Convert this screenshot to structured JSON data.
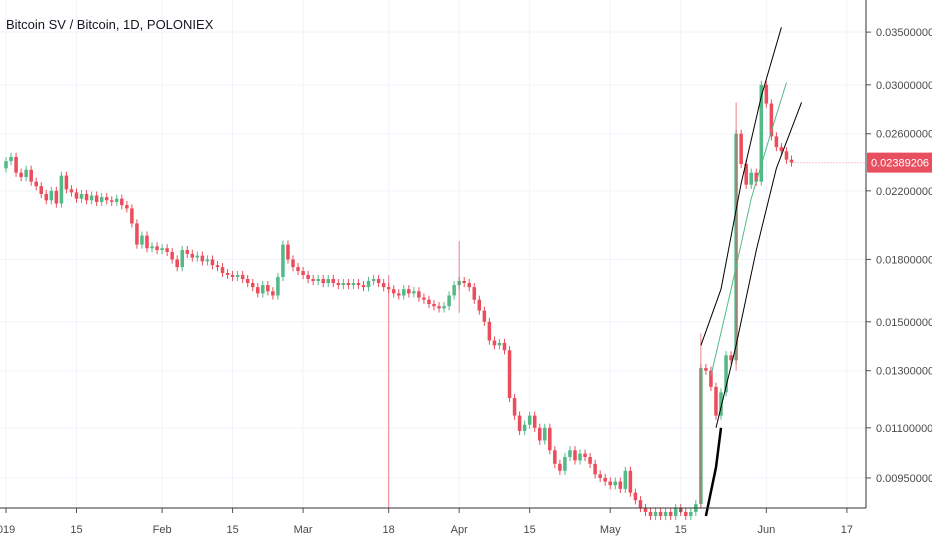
{
  "title": "Bitcoin SV / Bitcoin, 1D, POLONIEX",
  "colors": {
    "up": "#26a69a",
    "up_fill": "#53b987",
    "down": "#ef5350",
    "down_fill": "#eb4d5c",
    "grid": "#f0f3fa",
    "axis_text": "#4a4a4a",
    "channel": "#000000",
    "ma": "#53b987",
    "price_tag_bg": "#e84f5e"
  },
  "chart_data": {
    "type": "candlestick",
    "title": "Bitcoin SV / Bitcoin, 1D, POLONIEX",
    "scale": "log",
    "grid": true,
    "y_ticks": [
      "0.03500000",
      "0.03000000",
      "0.02600000",
      "0.02200000",
      "0.01800000",
      "0.01500000",
      "0.01300000",
      "0.01100000",
      "0.00950000"
    ],
    "y_tick_values": [
      0.035,
      0.03,
      0.026,
      0.022,
      0.018,
      0.015,
      0.013,
      0.011,
      0.0095
    ],
    "ylim": [
      0.0087,
      0.038
    ],
    "x_ticks": [
      "019",
      "15",
      "Feb",
      "15",
      "Mar",
      "18",
      "Apr",
      "15",
      "May",
      "15",
      "Jun",
      "17"
    ],
    "x_tick_days": [
      0,
      14,
      31,
      45,
      59,
      76,
      90,
      104,
      120,
      134,
      151,
      167
    ],
    "day_range": [
      0,
      170
    ],
    "last_price": "0.02389206",
    "candles_seed": [
      [
        0,
        0.0235,
        0.024
      ],
      [
        1,
        0.024,
        0.0243
      ],
      [
        2,
        0.0243,
        0.0232
      ],
      [
        3,
        0.0232,
        0.0229
      ],
      [
        4,
        0.0229,
        0.0234
      ],
      [
        5,
        0.0234,
        0.0226
      ],
      [
        6,
        0.0226,
        0.0223
      ],
      [
        7,
        0.0223,
        0.0218
      ],
      [
        8,
        0.0218,
        0.0214
      ],
      [
        9,
        0.0214,
        0.022
      ],
      [
        10,
        0.022,
        0.0212
      ],
      [
        11,
        0.0212,
        0.023
      ],
      [
        12,
        0.023,
        0.0221
      ],
      [
        13,
        0.0221,
        0.0219
      ],
      [
        14,
        0.0219,
        0.0215
      ],
      [
        15,
        0.0215,
        0.0218
      ],
      [
        16,
        0.0218,
        0.0214
      ],
      [
        17,
        0.0214,
        0.0217
      ],
      [
        18,
        0.0217,
        0.0213
      ],
      [
        19,
        0.0213,
        0.0216
      ],
      [
        20,
        0.0216,
        0.0214
      ],
      [
        21,
        0.0214,
        0.0213
      ],
      [
        22,
        0.0213,
        0.0215
      ],
      [
        23,
        0.0215,
        0.0211
      ],
      [
        24,
        0.0211,
        0.0209
      ],
      [
        25,
        0.0209,
        0.02
      ],
      [
        26,
        0.02,
        0.0188
      ],
      [
        27,
        0.0188,
        0.0193
      ],
      [
        28,
        0.0193,
        0.0186
      ],
      [
        29,
        0.0186,
        0.0187
      ],
      [
        30,
        0.0187,
        0.0185
      ],
      [
        31,
        0.0185,
        0.0186
      ],
      [
        32,
        0.0186,
        0.0184
      ],
      [
        33,
        0.0184,
        0.018
      ],
      [
        34,
        0.018,
        0.0176
      ],
      [
        35,
        0.0176,
        0.0185
      ],
      [
        36,
        0.0185,
        0.0183
      ],
      [
        37,
        0.0183,
        0.0181
      ],
      [
        38,
        0.0181,
        0.0182
      ],
      [
        39,
        0.0182,
        0.0179
      ],
      [
        40,
        0.0179,
        0.018
      ],
      [
        41,
        0.018,
        0.0177
      ],
      [
        42,
        0.0177,
        0.0176
      ],
      [
        43,
        0.0176,
        0.0173
      ],
      [
        44,
        0.0173,
        0.0172
      ],
      [
        45,
        0.0172,
        0.0171
      ],
      [
        46,
        0.0171,
        0.0172
      ],
      [
        47,
        0.0172,
        0.017
      ],
      [
        48,
        0.017,
        0.0168
      ],
      [
        49,
        0.0168,
        0.0166
      ],
      [
        50,
        0.0166,
        0.0163
      ],
      [
        51,
        0.0163,
        0.0167
      ],
      [
        52,
        0.0167,
        0.0164
      ],
      [
        53,
        0.0164,
        0.0162
      ],
      [
        54,
        0.0162,
        0.0171
      ],
      [
        55,
        0.0171,
        0.0188
      ],
      [
        56,
        0.0188,
        0.018
      ],
      [
        57,
        0.018,
        0.0176
      ],
      [
        58,
        0.0176,
        0.0174
      ],
      [
        59,
        0.0174,
        0.0172
      ],
      [
        60,
        0.0172,
        0.017
      ],
      [
        61,
        0.017,
        0.0169
      ],
      [
        62,
        0.0169,
        0.017
      ],
      [
        63,
        0.017,
        0.0168
      ],
      [
        64,
        0.0168,
        0.017
      ],
      [
        65,
        0.017,
        0.0168
      ],
      [
        66,
        0.0168,
        0.0167
      ],
      [
        67,
        0.0167,
        0.0168
      ],
      [
        68,
        0.0168,
        0.0167
      ],
      [
        69,
        0.0167,
        0.0168
      ],
      [
        70,
        0.0168,
        0.0167
      ],
      [
        71,
        0.0167,
        0.0166
      ],
      [
        72,
        0.0166,
        0.0169
      ],
      [
        73,
        0.0169,
        0.017
      ],
      [
        74,
        0.017,
        0.0168
      ],
      [
        75,
        0.0168,
        0.0166
      ],
      [
        76,
        0.0166,
        0.0165
      ],
      [
        77,
        0.0165,
        0.0163
      ],
      [
        78,
        0.0163,
        0.0162
      ],
      [
        79,
        0.0162,
        0.0165
      ],
      [
        80,
        0.0165,
        0.0163
      ],
      [
        81,
        0.0163,
        0.0164
      ],
      [
        82,
        0.0164,
        0.0161
      ],
      [
        83,
        0.0161,
        0.016
      ],
      [
        84,
        0.016,
        0.0158
      ],
      [
        85,
        0.0158,
        0.0157
      ],
      [
        86,
        0.0157,
        0.0156
      ],
      [
        87,
        0.0156,
        0.0157
      ],
      [
        88,
        0.0157,
        0.0162
      ],
      [
        89,
        0.0162,
        0.0167
      ],
      [
        90,
        0.0167,
        0.0169
      ],
      [
        91,
        0.0169,
        0.0168
      ],
      [
        92,
        0.0168,
        0.0166
      ],
      [
        93,
        0.0166,
        0.016
      ],
      [
        94,
        0.016,
        0.0155
      ],
      [
        95,
        0.0155,
        0.015
      ],
      [
        96,
        0.015,
        0.0142
      ],
      [
        97,
        0.0142,
        0.014
      ],
      [
        98,
        0.014,
        0.0141
      ],
      [
        99,
        0.0141,
        0.0138
      ],
      [
        100,
        0.0138,
        0.012
      ],
      [
        101,
        0.012,
        0.0114
      ],
      [
        102,
        0.0114,
        0.0109
      ],
      [
        103,
        0.0109,
        0.0111
      ],
      [
        104,
        0.0111,
        0.0114
      ],
      [
        105,
        0.0114,
        0.011
      ],
      [
        106,
        0.011,
        0.0106
      ],
      [
        107,
        0.0106,
        0.011
      ],
      [
        108,
        0.011,
        0.0103
      ],
      [
        109,
        0.0103,
        0.0099
      ],
      [
        110,
        0.0099,
        0.0097
      ],
      [
        111,
        0.0097,
        0.0101
      ],
      [
        112,
        0.0101,
        0.0103
      ],
      [
        113,
        0.0103,
        0.01
      ],
      [
        114,
        0.01,
        0.0102
      ],
      [
        115,
        0.0102,
        0.0101
      ],
      [
        116,
        0.0101,
        0.0099
      ],
      [
        117,
        0.0099,
        0.0096
      ],
      [
        118,
        0.0096,
        0.0095
      ],
      [
        119,
        0.0095,
        0.0094
      ],
      [
        120,
        0.0094,
        0.0093
      ],
      [
        121,
        0.0093,
        0.0094
      ],
      [
        122,
        0.0094,
        0.0092
      ],
      [
        123,
        0.0092,
        0.0097
      ],
      [
        124,
        0.0097,
        0.0091
      ],
      [
        125,
        0.0091,
        0.0089
      ],
      [
        126,
        0.0089,
        0.0087
      ],
      [
        127,
        0.0087,
        0.0086
      ],
      [
        128,
        0.0086,
        0.0085
      ],
      [
        129,
        0.0085,
        0.0086
      ],
      [
        130,
        0.0086,
        0.0085
      ],
      [
        131,
        0.0085,
        0.0086
      ],
      [
        132,
        0.0086,
        0.0085
      ],
      [
        133,
        0.0085,
        0.0087
      ],
      [
        134,
        0.0087,
        0.0086
      ],
      [
        135,
        0.0086,
        0.0085
      ],
      [
        136,
        0.0085,
        0.0086
      ],
      [
        137,
        0.0086,
        0.0088
      ],
      [
        138,
        0.0088,
        0.0131
      ],
      [
        139,
        0.0131,
        0.013
      ],
      [
        140,
        0.013,
        0.0124
      ],
      [
        141,
        0.0124,
        0.0114
      ],
      [
        142,
        0.0114,
        0.0122
      ],
      [
        143,
        0.0122,
        0.0136
      ],
      [
        144,
        0.0136,
        0.0134
      ],
      [
        145,
        0.0134,
        0.026
      ],
      [
        146,
        0.026,
        0.0238
      ],
      [
        147,
        0.0238,
        0.0224
      ],
      [
        148,
        0.0224,
        0.0232
      ],
      [
        149,
        0.0232,
        0.0226
      ],
      [
        150,
        0.0226,
        0.03
      ],
      [
        151,
        0.03,
        0.0284
      ],
      [
        152,
        0.0284,
        0.0258
      ],
      [
        153,
        0.0258,
        0.025
      ],
      [
        154,
        0.025,
        0.0247
      ],
      [
        155,
        0.0247,
        0.0241
      ],
      [
        156,
        0.0241,
        0.0239
      ]
    ],
    "wicks_extra": [
      [
        76,
        0.0087,
        0.0172
      ],
      [
        90,
        0.0154,
        0.019
      ],
      [
        138,
        0.0085,
        0.0145
      ],
      [
        145,
        0.013,
        0.0285
      ]
    ],
    "channel_upper": [
      [
        138,
        0.014
      ],
      [
        142,
        0.0165
      ],
      [
        146,
        0.0225
      ],
      [
        150,
        0.029
      ],
      [
        154,
        0.0355
      ]
    ],
    "channel_lower": [
      [
        141,
        0.011
      ],
      [
        145,
        0.014
      ],
      [
        149,
        0.0185
      ],
      [
        153,
        0.0235
      ],
      [
        158,
        0.0285
      ]
    ],
    "channel_base": [
      [
        139,
        0.0085
      ],
      [
        141,
        0.0098
      ],
      [
        142,
        0.011
      ]
    ],
    "ma_line": [
      [
        140,
        0.0128
      ],
      [
        144,
        0.0165
      ],
      [
        148,
        0.0215
      ],
      [
        152,
        0.0262
      ],
      [
        155,
        0.0302
      ]
    ]
  }
}
